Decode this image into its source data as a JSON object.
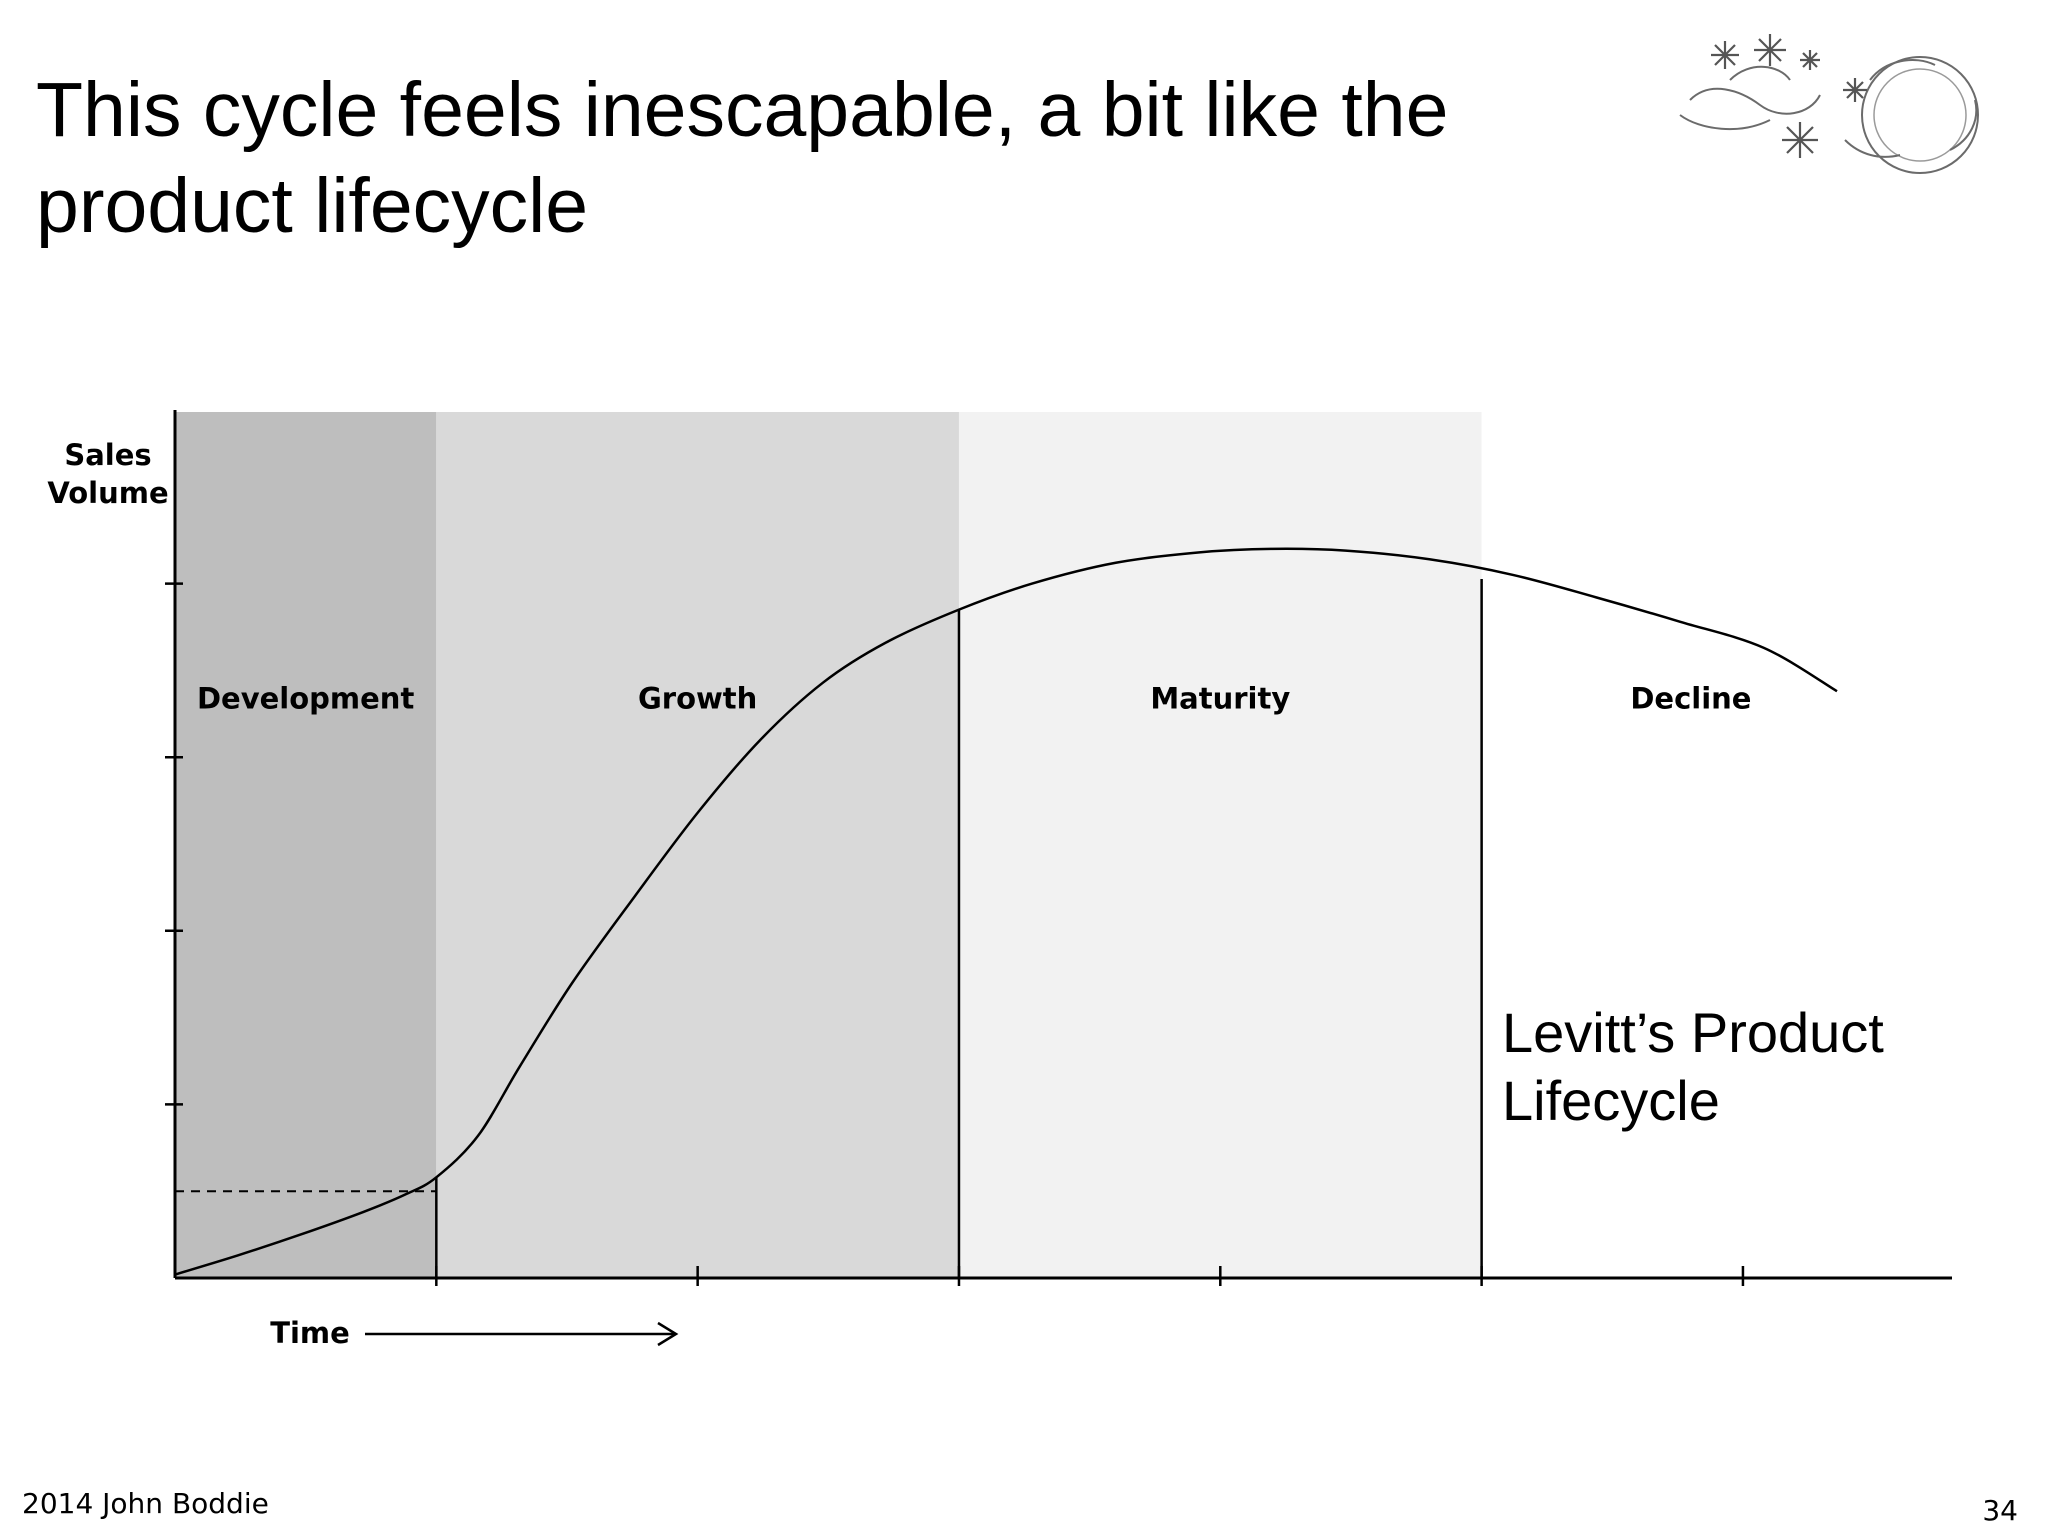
{
  "slide": {
    "title_line_1": "This cycle feels inescapable, a bit like the",
    "title_line_2": "product lifecycle",
    "footer_text": "2014 John Boddie",
    "page_number": "34",
    "ornament_icon": "snowflake-swirl-ornament-icon"
  },
  "chart_data": {
    "type": "line",
    "title": "",
    "annotation_line_1": "Levitt’s Product",
    "annotation_line_2": "Lifecycle",
    "ylabel_line_1": "Sales",
    "ylabel_line_2": "Volume",
    "xlabel": "Time",
    "xlim": [
      0,
      1.7
    ],
    "ylim": [
      0,
      5
    ],
    "grid": false,
    "legend": "none",
    "stages": [
      {
        "name": "Development",
        "start": 0.0,
        "end": 0.25,
        "fill": "#bebebe"
      },
      {
        "name": "Growth",
        "start": 0.25,
        "end": 0.75,
        "fill": "#d9d9d9"
      },
      {
        "name": "Maturity",
        "start": 0.75,
        "end": 1.25,
        "fill": "#f2f2f2"
      },
      {
        "name": "Decline",
        "start": 1.25,
        "end": 1.66,
        "fill": "#ffffff"
      }
    ],
    "stage_label_y": 3.28,
    "y_ticks": [
      1,
      2,
      3,
      4
    ],
    "x_ticks": [
      0.25,
      0.5,
      0.75,
      1.0,
      1.25,
      1.5
    ],
    "reference_level": 0.5,
    "series": [
      {
        "x": [
          0.0,
          0.06,
          0.12,
          0.18,
          0.22,
          0.25,
          0.29,
          0.33,
          0.38,
          0.44,
          0.5,
          0.56,
          0.62,
          0.68,
          0.75,
          0.82,
          0.9,
          0.98,
          1.05,
          1.12,
          1.2,
          1.28,
          1.36,
          1.44,
          1.52,
          1.59
        ],
        "y": [
          0.02,
          0.13,
          0.25,
          0.38,
          0.48,
          0.58,
          0.82,
          1.22,
          1.7,
          2.2,
          2.68,
          3.1,
          3.43,
          3.66,
          3.85,
          4.0,
          4.12,
          4.18,
          4.2,
          4.19,
          4.14,
          4.05,
          3.92,
          3.78,
          3.63,
          3.38
        ]
      }
    ]
  }
}
